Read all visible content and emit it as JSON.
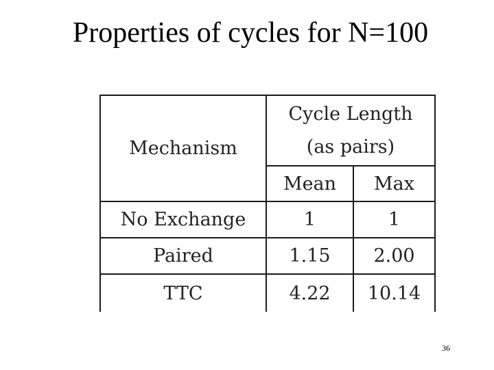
{
  "slide": {
    "title": "Properties of cycles for N=100",
    "page_number": "36"
  },
  "table": {
    "header": {
      "mechanism": "Mechanism",
      "group_line1": "Cycle Length",
      "group_line2": "(as pairs)",
      "mean": "Mean",
      "max": "Max"
    },
    "rows": [
      {
        "mechanism": "No Exchange",
        "mean": "1",
        "max": "1"
      },
      {
        "mechanism": "Paired",
        "mean": "1.15",
        "max": "2.00"
      },
      {
        "mechanism": "TTC",
        "mean": "4.22",
        "max": "10.14"
      }
    ]
  }
}
